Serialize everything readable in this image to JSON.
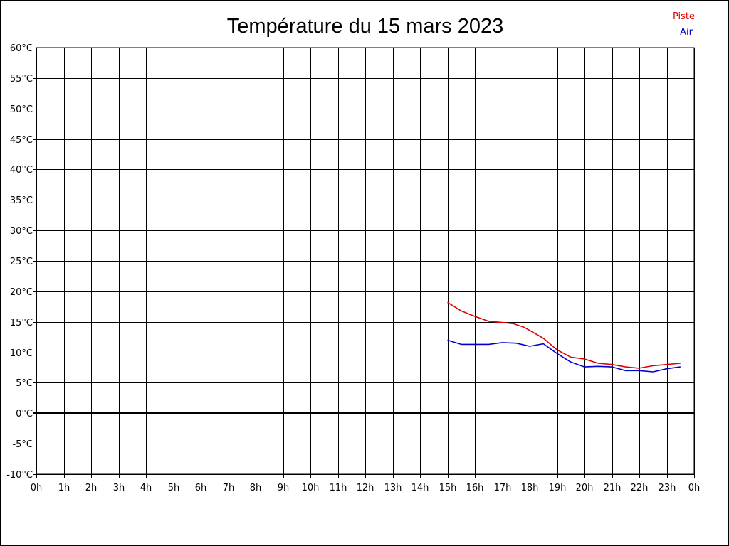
{
  "chart_data": {
    "type": "line",
    "title": "Température du 15 mars 2023",
    "xlabel": "",
    "ylabel": "",
    "x_unit": "hour",
    "xlim": [
      0,
      24
    ],
    "ylim": [
      -10,
      60
    ],
    "x_ticks": [
      0,
      1,
      2,
      3,
      4,
      5,
      6,
      7,
      8,
      9,
      10,
      11,
      12,
      13,
      14,
      15,
      16,
      17,
      18,
      19,
      20,
      21,
      22,
      23,
      24
    ],
    "x_tick_labels": [
      "0h",
      "1h",
      "2h",
      "3h",
      "4h",
      "5h",
      "6h",
      "7h",
      "8h",
      "9h",
      "10h",
      "11h",
      "12h",
      "13h",
      "14h",
      "15h",
      "16h",
      "17h",
      "18h",
      "19h",
      "20h",
      "21h",
      "22h",
      "23h",
      "0h"
    ],
    "y_ticks": [
      -10,
      -5,
      0,
      5,
      10,
      15,
      20,
      25,
      30,
      35,
      40,
      45,
      50,
      55,
      60
    ],
    "y_tick_labels": [
      "-10°C",
      "-5°C",
      "0°C",
      "5°C",
      "10°C",
      "15°C",
      "20°C",
      "25°C",
      "30°C",
      "35°C",
      "40°C",
      "45°C",
      "50°C",
      "55°C",
      "60°C"
    ],
    "grid": true,
    "zero_line": true,
    "legend_position": "top-right",
    "series": [
      {
        "name": "Piste",
        "color": "#e00000",
        "x": [
          15.0,
          15.5,
          16.0,
          16.5,
          17.0,
          17.4,
          17.8,
          18.0,
          18.5,
          19.0,
          19.5,
          20.0,
          20.5,
          21.0,
          21.5,
          22.0,
          22.5,
          23.0,
          23.5
        ],
        "y": [
          18.2,
          16.8,
          15.9,
          15.1,
          14.9,
          14.7,
          14.1,
          13.6,
          12.3,
          10.4,
          9.2,
          8.9,
          8.2,
          8.0,
          7.6,
          7.4,
          7.8,
          8.0,
          8.2
        ]
      },
      {
        "name": "Air",
        "color": "#0000d0",
        "x": [
          15.0,
          15.5,
          16.0,
          16.5,
          17.0,
          17.5,
          18.0,
          18.5,
          19.0,
          19.5,
          20.0,
          20.5,
          21.0,
          21.5,
          22.0,
          22.5,
          23.0,
          23.5
        ],
        "y": [
          12.0,
          11.3,
          11.3,
          11.3,
          11.6,
          11.5,
          11.0,
          11.4,
          9.8,
          8.4,
          7.6,
          7.7,
          7.6,
          7.0,
          7.0,
          6.8,
          7.3,
          7.6
        ]
      }
    ]
  }
}
